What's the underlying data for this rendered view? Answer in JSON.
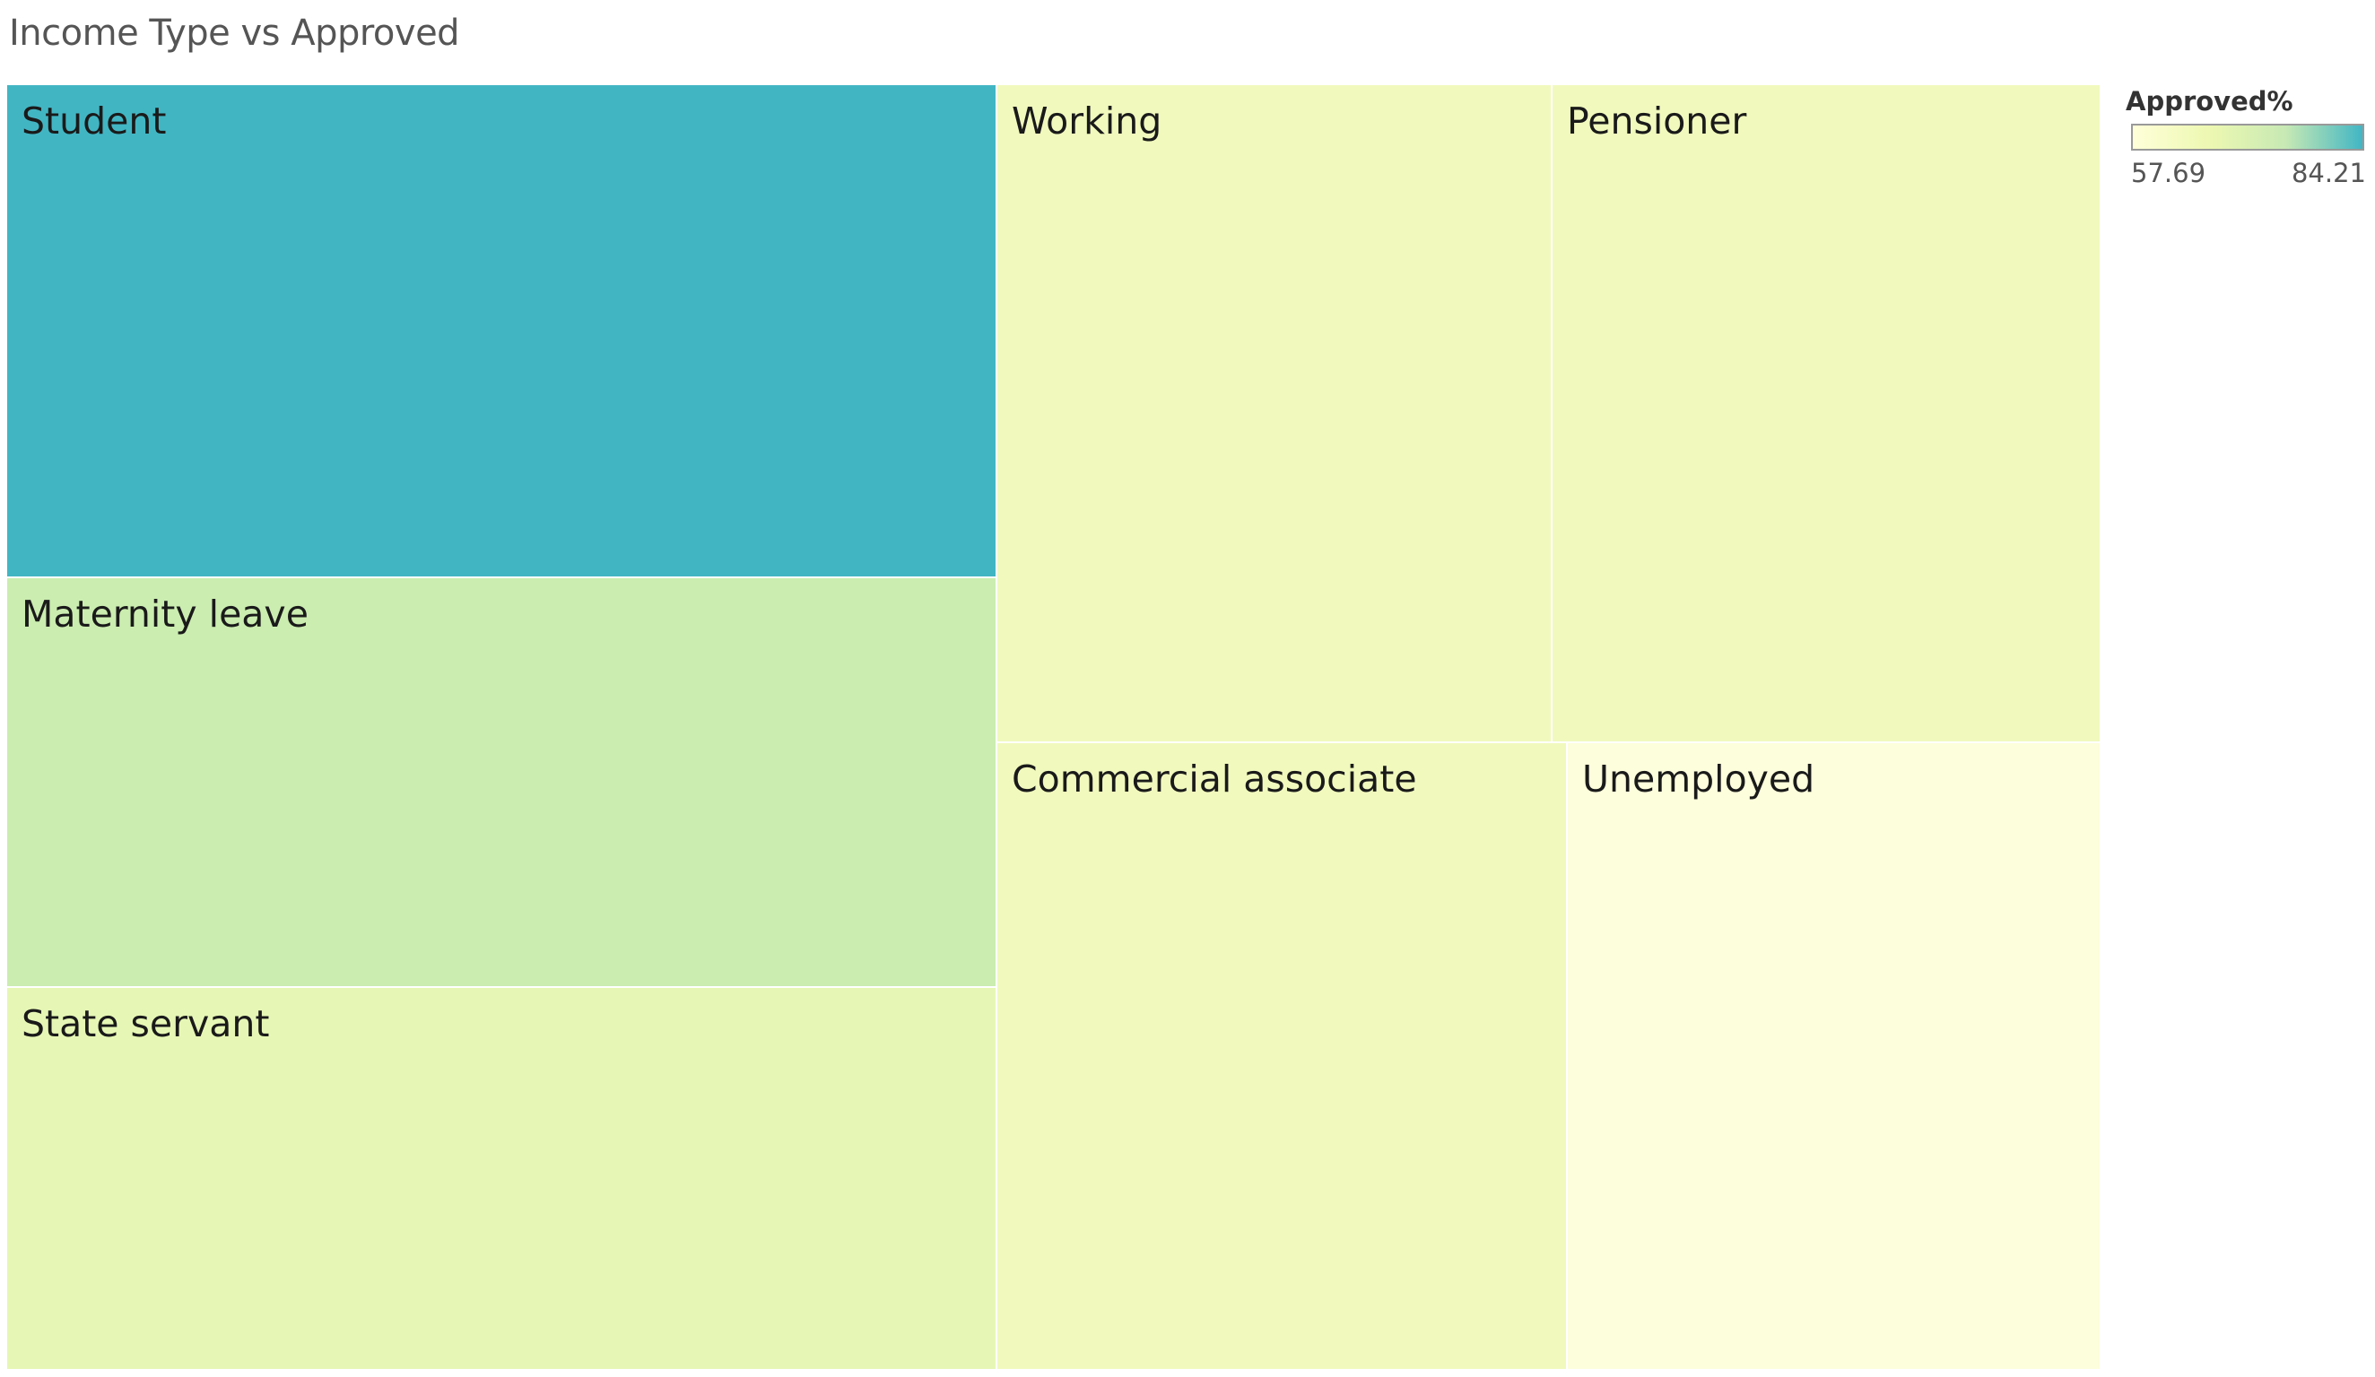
{
  "chart_data": {
    "type": "treemap",
    "title": "Income Type vs Approved",
    "color_legend": {
      "title": "Approved%",
      "min": "57.69",
      "max": "84.21",
      "min_value": 57.69,
      "max_value": 84.21,
      "colors": [
        "#ffffd9",
        "#edf8b1",
        "#c7e9b4",
        "#41b6c4"
      ]
    },
    "items": [
      {
        "label": "Student",
        "color_value": 84.21,
        "color": "#42b5c3"
      },
      {
        "label": "Maternity leave",
        "color_value": 70.0,
        "color": "#cbedb0"
      },
      {
        "label": "State servant",
        "color_value": 62.0,
        "color": "#e6f7b5"
      },
      {
        "label": "Working",
        "color_value": 60.0,
        "color": "#f1f9bd"
      },
      {
        "label": "Pensioner",
        "color_value": 60.0,
        "color": "#f1f9bd"
      },
      {
        "label": "Commercial associate",
        "color_value": 60.0,
        "color": "#f1f9bd"
      },
      {
        "label": "Unemployed",
        "color_value": 57.69,
        "color": "#fdfedb"
      }
    ]
  }
}
